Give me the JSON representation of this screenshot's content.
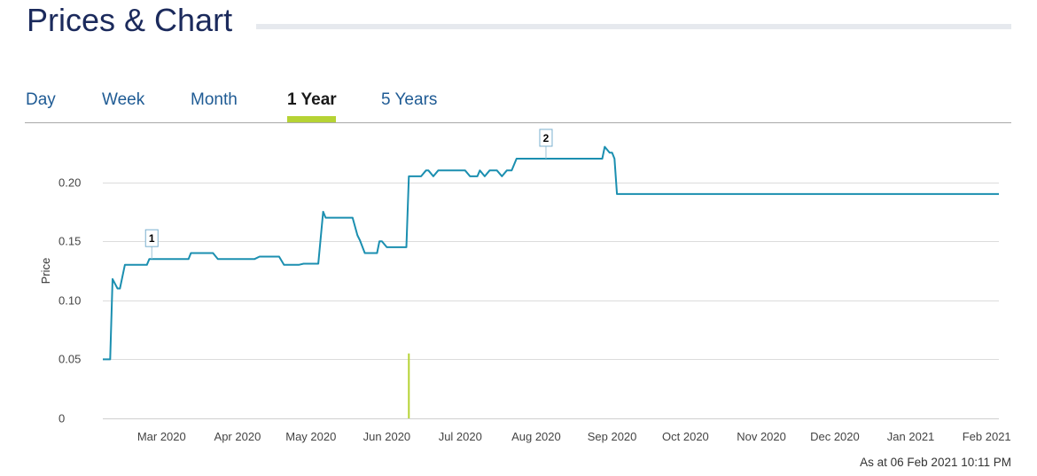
{
  "header": {
    "title": "Prices & Chart"
  },
  "tabs": [
    {
      "label": "Day",
      "active": false
    },
    {
      "label": "Week",
      "active": false
    },
    {
      "label": "Month",
      "active": false
    },
    {
      "label": "1 Year",
      "active": true
    },
    {
      "label": "5 Years",
      "active": false
    }
  ],
  "footer": {
    "as_at": "As at 06 Feb 2021 10:11 PM"
  },
  "colors": {
    "line": "#1b8fb0",
    "volume": "#b6d334",
    "active_tab": "#b6d334",
    "title": "#1b2a5c"
  },
  "chart_data": {
    "type": "line",
    "ylabel": "Price",
    "ylim": [
      0,
      0.25
    ],
    "yticks": [
      {
        "value": 0,
        "label": "0"
      },
      {
        "value": 0.05,
        "label": "0.05"
      },
      {
        "value": 0.1,
        "label": "0.10"
      },
      {
        "value": 0.15,
        "label": "0.15"
      },
      {
        "value": 0.2,
        "label": "0.20"
      }
    ],
    "xlim": [
      "2020-02-06",
      "2021-02-06"
    ],
    "xticks": [
      {
        "date": "2020-03-01",
        "label": "Mar 2020"
      },
      {
        "date": "2020-04-01",
        "label": "Apr 2020"
      },
      {
        "date": "2020-05-01",
        "label": "May 2020"
      },
      {
        "date": "2020-06-01",
        "label": "Jun 2020"
      },
      {
        "date": "2020-07-01",
        "label": "Jul 2020"
      },
      {
        "date": "2020-08-01",
        "label": "Aug 2020"
      },
      {
        "date": "2020-09-01",
        "label": "Sep 2020"
      },
      {
        "date": "2020-10-01",
        "label": "Oct 2020"
      },
      {
        "date": "2020-11-01",
        "label": "Nov 2020"
      },
      {
        "date": "2020-12-01",
        "label": "Dec 2020"
      },
      {
        "date": "2021-01-01",
        "label": "Jan 2021"
      },
      {
        "date": "2021-02-01",
        "label": "Feb 2021"
      }
    ],
    "grid": true,
    "series": [
      {
        "points": [
          [
            "2020-02-06",
            0.05
          ],
          [
            "2020-02-09",
            0.05
          ],
          [
            "2020-02-10",
            0.118
          ],
          [
            "2020-02-12",
            0.11
          ],
          [
            "2020-02-13",
            0.11
          ],
          [
            "2020-02-15",
            0.13
          ],
          [
            "2020-02-24",
            0.13
          ],
          [
            "2020-02-25",
            0.135
          ],
          [
            "2020-03-12",
            0.135
          ],
          [
            "2020-03-13",
            0.14
          ],
          [
            "2020-03-22",
            0.14
          ],
          [
            "2020-03-24",
            0.135
          ],
          [
            "2020-04-08",
            0.135
          ],
          [
            "2020-04-10",
            0.137
          ],
          [
            "2020-04-18",
            0.137
          ],
          [
            "2020-04-20",
            0.13
          ],
          [
            "2020-04-26",
            0.13
          ],
          [
            "2020-04-28",
            0.131
          ],
          [
            "2020-05-04",
            0.131
          ],
          [
            "2020-05-06",
            0.175
          ],
          [
            "2020-05-07",
            0.17
          ],
          [
            "2020-05-18",
            0.17
          ],
          [
            "2020-05-20",
            0.155
          ],
          [
            "2020-05-21",
            0.151
          ],
          [
            "2020-05-23",
            0.14
          ],
          [
            "2020-05-28",
            0.14
          ],
          [
            "2020-05-29",
            0.15
          ],
          [
            "2020-05-30",
            0.15
          ],
          [
            "2020-06-01",
            0.145
          ],
          [
            "2020-06-09",
            0.145
          ],
          [
            "2020-06-10",
            0.205
          ],
          [
            "2020-06-15",
            0.205
          ],
          [
            "2020-06-17",
            0.21
          ],
          [
            "2020-06-18",
            0.21
          ],
          [
            "2020-06-20",
            0.205
          ],
          [
            "2020-06-22",
            0.21
          ],
          [
            "2020-07-03",
            0.21
          ],
          [
            "2020-07-05",
            0.205
          ],
          [
            "2020-07-08",
            0.205
          ],
          [
            "2020-07-09",
            0.21
          ],
          [
            "2020-07-11",
            0.205
          ],
          [
            "2020-07-13",
            0.21
          ],
          [
            "2020-07-16",
            0.21
          ],
          [
            "2020-07-18",
            0.205
          ],
          [
            "2020-07-20",
            0.21
          ],
          [
            "2020-07-22",
            0.21
          ],
          [
            "2020-07-24",
            0.22
          ],
          [
            "2020-08-28",
            0.22
          ],
          [
            "2020-08-29",
            0.23
          ],
          [
            "2020-08-31",
            0.225
          ],
          [
            "2020-09-01",
            0.225
          ],
          [
            "2020-09-02",
            0.22
          ],
          [
            "2020-09-03",
            0.19
          ],
          [
            "2021-02-06",
            0.19
          ]
        ]
      }
    ],
    "volume": [
      {
        "date": "2020-06-10",
        "value": 0.055
      }
    ],
    "annotations": [
      {
        "label": "1",
        "date": "2020-02-26",
        "value": 0.135
      },
      {
        "label": "2",
        "date": "2020-08-05",
        "value": 0.22
      }
    ]
  }
}
